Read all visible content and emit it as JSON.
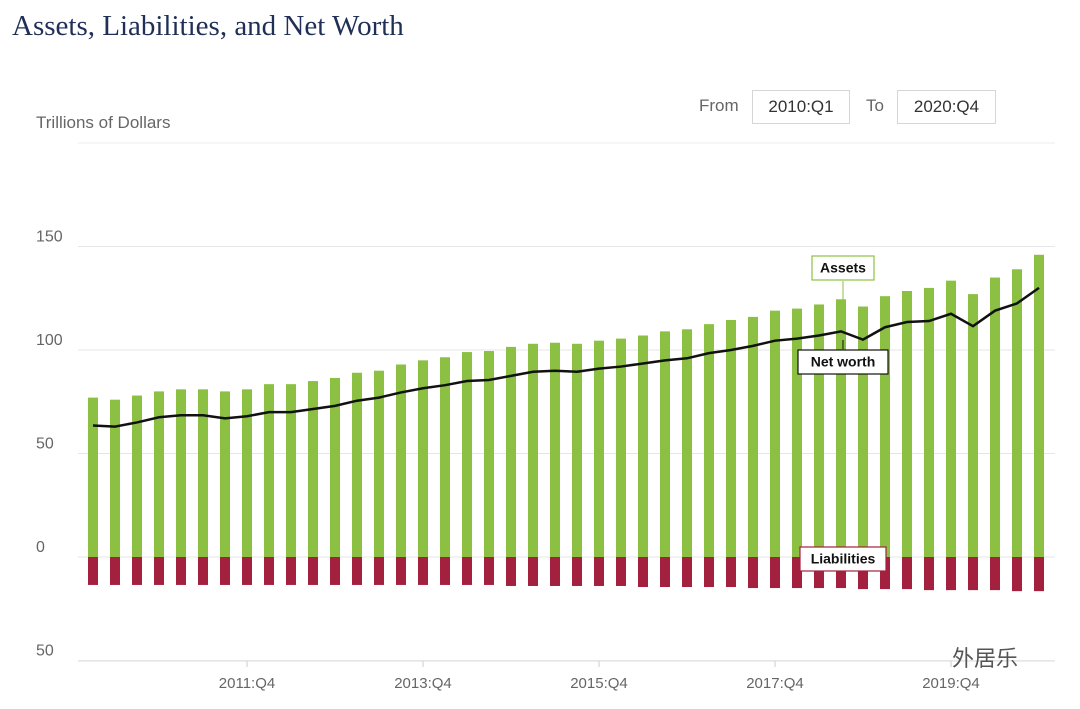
{
  "chart_data": {
    "type": "bar",
    "title": "Assets, Liabilities, and Net Worth",
    "y_label": "Trillions of Dollars",
    "categories": [
      null,
      null,
      null,
      null,
      null,
      null,
      null,
      "2011:Q4",
      null,
      null,
      null,
      null,
      null,
      null,
      null,
      "2013:Q4",
      null,
      null,
      null,
      null,
      null,
      null,
      null,
      "2015:Q4",
      null,
      null,
      null,
      null,
      null,
      null,
      null,
      "2017:Q4",
      null,
      null,
      null,
      null,
      null,
      null,
      null,
      "2019:Q4",
      null,
      null,
      null,
      null
    ],
    "series": [
      {
        "name": "Assets",
        "type": "bar",
        "color": "#8cc043",
        "values": [
          77,
          76,
          78,
          80,
          81,
          81,
          80,
          81,
          83.5,
          83.5,
          85,
          86.5,
          89,
          90,
          93,
          95,
          96.5,
          99,
          99.5,
          101.5,
          103,
          103.5,
          103,
          104.5,
          105.5,
          107,
          109,
          110,
          112.5,
          114.5,
          116,
          119,
          120,
          122,
          124.5,
          121,
          126,
          128.5,
          130,
          133.5,
          127,
          135,
          139,
          146
        ]
      },
      {
        "name": "Liabilities",
        "type": "bar",
        "color": "#a3213f",
        "values": [
          -13.5,
          -13.5,
          -13.5,
          -13.5,
          -13.5,
          -13.5,
          -13.5,
          -13.5,
          -13.5,
          -13.5,
          -13.5,
          -13.5,
          -13.5,
          -13.5,
          -13.5,
          -13.5,
          -13.5,
          -13.5,
          -13.5,
          -14,
          -14,
          -14,
          -14,
          -14,
          -14,
          -14.5,
          -14.5,
          -14.5,
          -14.5,
          -14.5,
          -15,
          -15,
          -15,
          -15,
          -15,
          -15.5,
          -15.5,
          -15.5,
          -16,
          -16,
          -16,
          -16,
          -16.5,
          -16.5
        ]
      },
      {
        "name": "Net worth",
        "type": "line",
        "color": "#111111",
        "values": [
          63.5,
          63,
          65,
          67.5,
          68.5,
          68.5,
          67,
          68,
          70,
          70,
          71.5,
          73,
          75.5,
          77,
          79.5,
          81.5,
          83,
          85,
          85.5,
          87.5,
          89.5,
          90,
          89.5,
          91,
          92,
          93.5,
          95,
          96,
          98.5,
          100,
          102,
          104.5,
          105.5,
          107,
          109,
          105,
          111,
          113.5,
          114,
          117.5,
          111.5,
          119,
          122.5,
          130
        ]
      }
    ],
    "ylim": [
      -50,
      200
    ],
    "yticks": [
      {
        "value": -50,
        "label": "50"
      },
      0,
      50,
      100,
      150
    ],
    "grid": true
  },
  "controls": {
    "from_label": "From",
    "from_value": "2010:Q1",
    "to_label": "To",
    "to_value": "2020:Q4"
  },
  "watermark": "外居乐"
}
